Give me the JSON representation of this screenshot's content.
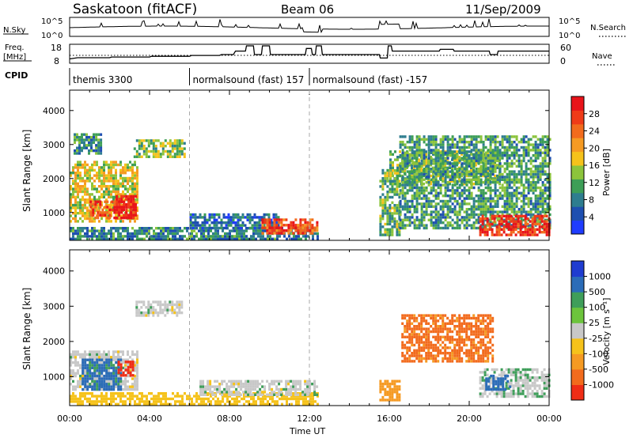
{
  "header": {
    "station": "Saskatoon (fitACF)",
    "beam": "Beam 06",
    "date": "11/Sep/2009"
  },
  "status_panels": {
    "nsky_label": "N.Sky",
    "nsky_ticks": [
      "10^5",
      "10^0"
    ],
    "nsearch_label": "N.Search",
    "nsearch_ticks": [
      "10^5",
      "10^0"
    ],
    "freq_label_1": "Freq.",
    "freq_label_2": "[MHz]",
    "freq_ticks": [
      "18",
      "8"
    ],
    "nave_label": "Nave",
    "nave_ticks": [
      "60",
      "0"
    ],
    "cpid_label": "CPID",
    "cpid_segments": [
      {
        "label": "themis 3300",
        "start_h": 0,
        "end_h": 6
      },
      {
        "label": "normalsound (fast) 157",
        "start_h": 6,
        "end_h": 12
      },
      {
        "label": "normalsound (fast) -157",
        "start_h": 12,
        "end_h": 24
      }
    ],
    "freq_trace_mhz": [
      [
        0,
        10.5
      ],
      [
        0.4,
        11.2
      ],
      [
        2,
        11.2
      ],
      [
        2.1,
        11.6
      ],
      [
        4,
        11.6
      ],
      [
        4.1,
        12.0
      ],
      [
        6,
        12.0
      ],
      [
        6.1,
        12.5
      ],
      [
        7.5,
        12.5
      ],
      [
        7.6,
        13.0
      ],
      [
        8.2,
        13.0
      ],
      [
        8.3,
        15.0
      ],
      [
        8.8,
        15.0
      ],
      [
        8.85,
        18.0
      ],
      [
        9.2,
        18.0
      ],
      [
        9.25,
        13.0
      ],
      [
        9.6,
        13.0
      ],
      [
        9.65,
        18.0
      ],
      [
        10.0,
        18.0
      ],
      [
        10.05,
        13.0
      ],
      [
        11.8,
        13.0
      ],
      [
        11.85,
        16.5
      ],
      [
        12.1,
        16.5
      ],
      [
        12.15,
        13.0
      ],
      [
        12.3,
        13.0
      ],
      [
        12.35,
        18.0
      ],
      [
        12.6,
        18.0
      ],
      [
        12.65,
        13.0
      ],
      [
        15.5,
        13.0
      ],
      [
        15.55,
        11.0
      ],
      [
        15.9,
        11.0
      ],
      [
        15.95,
        18.0
      ],
      [
        16.1,
        18.0
      ],
      [
        16.15,
        15.0
      ],
      [
        18.5,
        15.0
      ],
      [
        18.55,
        16.0
      ],
      [
        19.2,
        16.0
      ],
      [
        19.25,
        15.0
      ],
      [
        21.0,
        15.0
      ],
      [
        21.05,
        13.0
      ],
      [
        21.4,
        13.0
      ],
      [
        21.45,
        15.0
      ],
      [
        24,
        15.0
      ]
    ]
  },
  "colorbars": {
    "power": {
      "label": "Power [dB]",
      "ticks": [
        "28",
        "24",
        "20",
        "16",
        "12",
        "8",
        "4"
      ],
      "colors": [
        "#1f3cff",
        "#1e4fb0",
        "#2e7d8f",
        "#3d9e57",
        "#8cc43c",
        "#f5c21b",
        "#f59a23",
        "#f26b1d",
        "#ef3b18",
        "#e8141a"
      ]
    },
    "velocity": {
      "label": "Velocity [m s⁻¹]",
      "ticks": [
        "1000",
        "500",
        "100",
        "25",
        "-25",
        "-100",
        "-500",
        "-1000"
      ],
      "colors": [
        "#1f3cd0",
        "#2b6cb8",
        "#3f9e5a",
        "#6cc43c",
        "#c8c8c8",
        "#f5c21b",
        "#f59a23",
        "#f26b1d",
        "#ef2d16"
      ]
    }
  },
  "axes": {
    "ylabel": "Slant Range [km]",
    "yticks": [
      "4000",
      "3000",
      "2000",
      "1000"
    ],
    "xlabel": "Time UT",
    "xticks": [
      "00:00",
      "04:00",
      "08:00",
      "12:00",
      "16:00",
      "20:00",
      "00:00"
    ]
  },
  "chart_data": [
    {
      "type": "heatmap",
      "title": "Power",
      "xlabel": "Time UT",
      "ylabel": "Slant Range [km]",
      "xlim_hours": [
        0,
        24
      ],
      "ylim_km": [
        180,
        4600
      ],
      "value_label": "Power [dB]",
      "value_range": [
        0,
        30
      ],
      "regions": [
        {
          "t0": 0.0,
          "t1": 3.4,
          "r0": 700,
          "r1": 2500,
          "value": 16
        },
        {
          "t0": 1.0,
          "t1": 3.2,
          "r0": 800,
          "r1": 1300,
          "value": 25
        },
        {
          "t0": 2.3,
          "t1": 3.3,
          "r0": 800,
          "r1": 1500,
          "value": 29
        },
        {
          "t0": 0.2,
          "t1": 1.6,
          "r0": 2700,
          "r1": 3300,
          "value": 9
        },
        {
          "t0": 3.2,
          "t1": 5.8,
          "r0": 2600,
          "r1": 3100,
          "value": 13
        },
        {
          "t0": 0.0,
          "t1": 12.4,
          "r0": 180,
          "r1": 500,
          "value": 8
        },
        {
          "t0": 6.0,
          "t1": 10.5,
          "r0": 500,
          "r1": 900,
          "value": 6
        },
        {
          "t0": 9.6,
          "t1": 12.4,
          "r0": 350,
          "r1": 750,
          "value": 25
        },
        {
          "t0": 15.5,
          "t1": 16.5,
          "r0": 300,
          "r1": 2200,
          "value": 11
        },
        {
          "t0": 16.0,
          "t1": 21.5,
          "r0": 1800,
          "r1": 2800,
          "value": 12
        },
        {
          "t0": 16.5,
          "t1": 24.0,
          "r0": 500,
          "r1": 3200,
          "value": 10
        },
        {
          "t0": 20.5,
          "t1": 24.0,
          "r0": 300,
          "r1": 900,
          "value": 26
        }
      ]
    },
    {
      "type": "heatmap",
      "title": "Velocity",
      "xlabel": "Time UT",
      "ylabel": "Slant Range [km]",
      "xlim_hours": [
        0,
        24
      ],
      "ylim_km": [
        180,
        4600
      ],
      "value_label": "Velocity [m s⁻¹]",
      "value_range": [
        -1000,
        1000
      ],
      "regions": [
        {
          "t0": 0.0,
          "t1": 3.4,
          "r0": 600,
          "r1": 1700,
          "value": 0
        },
        {
          "t0": 0.6,
          "t1": 2.6,
          "r0": 600,
          "r1": 1500,
          "value": 120
        },
        {
          "t0": 2.4,
          "t1": 3.2,
          "r0": 1000,
          "r1": 1400,
          "value": -900
        },
        {
          "t0": 3.3,
          "t1": 5.6,
          "r0": 2700,
          "r1": 3100,
          "value": 0
        },
        {
          "t0": 0.0,
          "t1": 12.4,
          "r0": 180,
          "r1": 500,
          "value": -60
        },
        {
          "t0": 6.5,
          "t1": 12.4,
          "r0": 450,
          "r1": 900,
          "value": 0
        },
        {
          "t0": 15.5,
          "t1": 16.5,
          "r0": 300,
          "r1": 900,
          "value": -150
        },
        {
          "t0": 16.6,
          "t1": 21.2,
          "r0": 1400,
          "r1": 2700,
          "value": -520
        },
        {
          "t0": 20.5,
          "t1": 24.0,
          "r0": 400,
          "r1": 1200,
          "value": 10
        },
        {
          "t0": 20.8,
          "t1": 22.0,
          "r0": 600,
          "r1": 1000,
          "value": 150
        }
      ]
    }
  ]
}
